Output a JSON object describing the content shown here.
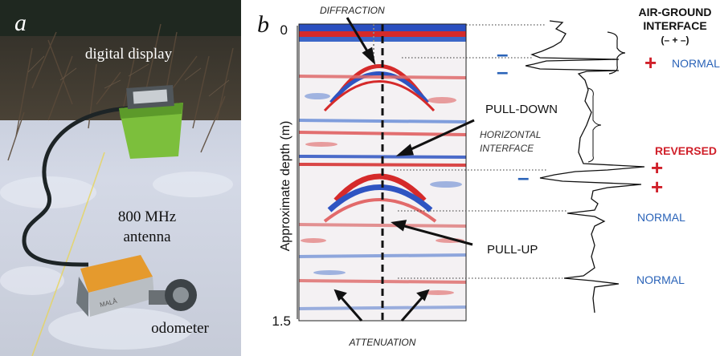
{
  "panel_a": {
    "letter": "a",
    "labels": {
      "digital_display": "digital display",
      "antenna_line1": "800 MHz",
      "antenna_line2": "antenna",
      "odometer": "odometer"
    },
    "device_brand": "MALÅ"
  },
  "panel_b": {
    "letter": "b",
    "axis": {
      "ylabel": "Approximate depth (m)",
      "tick_top": "0",
      "tick_bottom": "1.5"
    },
    "annotations": {
      "diffraction": "DIFFRACTION",
      "pull_down": "PULL-DOWN",
      "horizontal_line1": "HORIZONTAL",
      "horizontal_line2": "INTERFACE",
      "pull_up": "PULL-UP",
      "attenuation": "ATTENUATION"
    },
    "waveform_labels": {
      "air_ground_line1": "AIR-GROUND",
      "air_ground_line2": "INTERFACE",
      "air_ground_polarity": "(– + –)",
      "normal_1": "NORMAL",
      "reversed": "REVERSED",
      "normal_2": "NORMAL",
      "normal_3": "NORMAL",
      "minus": "–",
      "plus": "+"
    },
    "colors": {
      "positive": "#d0202a",
      "negative": "#2a63b8",
      "text": "#111111"
    }
  }
}
